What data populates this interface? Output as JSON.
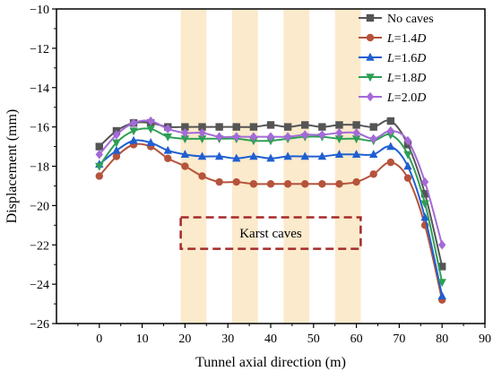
{
  "chart_data": {
    "type": "line",
    "xlabel": "Tunnel axial direction (m)",
    "ylabel": "Displacement (mm)",
    "xlim": [
      -10,
      90
    ],
    "ylim": [
      -26,
      -10
    ],
    "xticks": [
      0,
      10,
      20,
      30,
      40,
      50,
      60,
      70,
      80,
      90
    ],
    "yticks": [
      -10,
      -12,
      -14,
      -16,
      -18,
      -20,
      -22,
      -24,
      -26
    ],
    "legend_position": "top-right",
    "grid": false,
    "shaded_bands": [
      [
        19,
        25
      ],
      [
        31,
        37
      ],
      [
        43,
        49
      ],
      [
        55,
        61
      ]
    ],
    "shaded_band_color": "#fbeacb",
    "annotation": {
      "text": "Karst caves",
      "x_range": [
        19,
        61
      ],
      "y_range": [
        -20.6,
        -22.2
      ],
      "border_color": "#a52a2a"
    },
    "series": [
      {
        "name": "No caves",
        "legend": {
          "prefix": "No caves",
          "italic": "",
          "suffix": "",
          "italic2": ""
        },
        "color": "#555555",
        "marker": "square",
        "x": [
          0,
          4,
          8,
          12,
          16,
          20,
          24,
          28,
          32,
          36,
          40,
          44,
          48,
          52,
          56,
          60,
          64,
          68,
          72,
          76,
          80
        ],
        "y": [
          -17.0,
          -16.2,
          -15.8,
          -15.8,
          -16.0,
          -16.0,
          -16.0,
          -16.0,
          -16.0,
          -16.0,
          -15.9,
          -16.0,
          -15.9,
          -16.0,
          -15.9,
          -15.9,
          -16.0,
          -15.7,
          -16.9,
          -19.4,
          -23.1
        ]
      },
      {
        "name": "L=1.4D",
        "legend": {
          "prefix": "",
          "italic": "L",
          "suffix": "=1.4",
          "italic2": "D"
        },
        "color": "#b5533c",
        "marker": "circle",
        "x": [
          0,
          4,
          8,
          12,
          16,
          20,
          24,
          28,
          32,
          36,
          40,
          44,
          48,
          52,
          56,
          60,
          64,
          68,
          72,
          76,
          80
        ],
        "y": [
          -18.5,
          -17.5,
          -16.9,
          -17.0,
          -17.6,
          -18.0,
          -18.5,
          -18.8,
          -18.8,
          -18.9,
          -18.9,
          -18.9,
          -18.9,
          -18.9,
          -18.9,
          -18.8,
          -18.4,
          -17.8,
          -18.6,
          -21.0,
          -24.8
        ]
      },
      {
        "name": "L=1.6D",
        "legend": {
          "prefix": "",
          "italic": "L",
          "suffix": "=1.6",
          "italic2": "D"
        },
        "color": "#1f5fd1",
        "marker": "triangle-up",
        "x": [
          0,
          4,
          8,
          12,
          16,
          20,
          24,
          28,
          32,
          36,
          40,
          44,
          48,
          52,
          56,
          60,
          64,
          68,
          72,
          76,
          80
        ],
        "y": [
          -17.9,
          -17.2,
          -16.7,
          -16.8,
          -17.2,
          -17.4,
          -17.5,
          -17.5,
          -17.6,
          -17.5,
          -17.6,
          -17.5,
          -17.5,
          -17.5,
          -17.4,
          -17.4,
          -17.4,
          -17.0,
          -18.0,
          -20.6,
          -24.6
        ]
      },
      {
        "name": "L=1.8D",
        "legend": {
          "prefix": "",
          "italic": "L",
          "suffix": "=1.8",
          "italic2": "D"
        },
        "color": "#2e9e55",
        "marker": "triangle-down",
        "x": [
          0,
          4,
          8,
          12,
          16,
          20,
          24,
          28,
          32,
          36,
          40,
          44,
          48,
          52,
          56,
          60,
          64,
          68,
          72,
          76,
          80
        ],
        "y": [
          -18.0,
          -16.8,
          -16.2,
          -16.1,
          -16.5,
          -16.6,
          -16.6,
          -16.6,
          -16.6,
          -16.7,
          -16.7,
          -16.6,
          -16.5,
          -16.5,
          -16.6,
          -16.6,
          -16.7,
          -16.4,
          -17.4,
          -19.9,
          -23.9
        ]
      },
      {
        "name": "L=2.0D",
        "legend": {
          "prefix": "",
          "italic": "L",
          "suffix": "=2.0",
          "italic2": "D"
        },
        "color": "#a46ad8",
        "marker": "diamond",
        "x": [
          0,
          4,
          8,
          12,
          16,
          20,
          24,
          28,
          32,
          36,
          40,
          44,
          48,
          52,
          56,
          60,
          64,
          68,
          72,
          76,
          80
        ],
        "y": [
          -17.4,
          -16.4,
          -15.8,
          -15.7,
          -16.1,
          -16.3,
          -16.3,
          -16.5,
          -16.5,
          -16.5,
          -16.5,
          -16.5,
          -16.4,
          -16.4,
          -16.3,
          -16.3,
          -16.6,
          -16.2,
          -16.7,
          -18.8,
          -22.0
        ]
      }
    ]
  }
}
